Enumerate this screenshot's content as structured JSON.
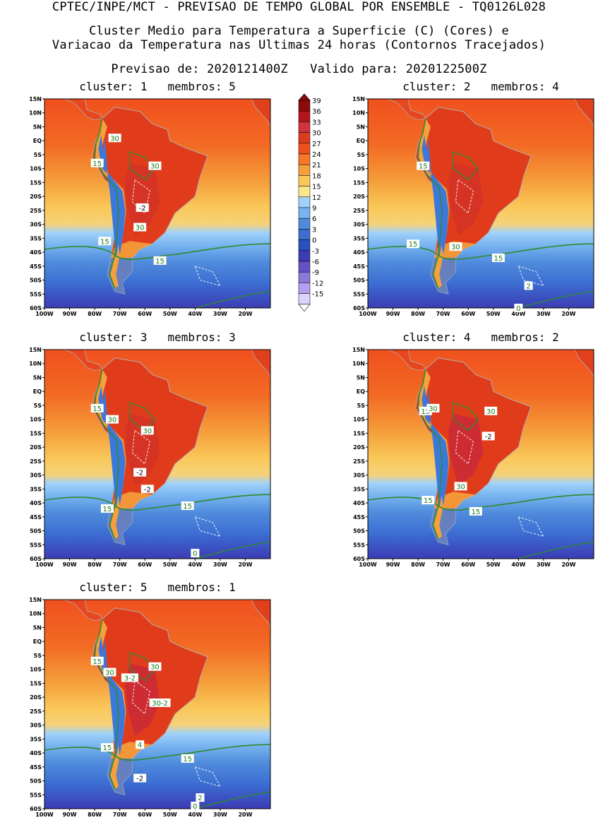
{
  "header": {
    "line1": "CPTEC/INPE/MCT - PREVISAO DE TEMPO GLOBAL POR ENSEMBLE - TQ0126L028",
    "line2": "Cluster Medio para Temperatura a Superficie (C) (Cores) e",
    "line3": "Variacao da Temperatura nas Ultimas 24 horas (Contornos Tracejados)",
    "line4": "Previsao de: 2020121400Z   Valido para: 2020122500Z"
  },
  "lat_labels": [
    "15N",
    "10N",
    "5N",
    "EQ",
    "5S",
    "10S",
    "15S",
    "20S",
    "25S",
    "30S",
    "35S",
    "40S",
    "45S",
    "50S",
    "55S",
    "60S"
  ],
  "lon_labels": [
    "100W",
    "90W",
    "80W",
    "70W",
    "60W",
    "50W",
    "40W",
    "30W",
    "20W"
  ],
  "colorbar": {
    "labels": [
      "39",
      "36",
      "33",
      "30",
      "27",
      "24",
      "21",
      "18",
      "15",
      "12",
      "9",
      "6",
      "3",
      "0",
      "-3",
      "-6",
      "-9",
      "-12",
      "-15"
    ],
    "colors": [
      "#8c0a0a",
      "#b4141e",
      "#d2323c",
      "#dc3c1e",
      "#f0501e",
      "#f57828",
      "#f5a03c",
      "#fac85a",
      "#fae68c",
      "#a0d2fa",
      "#78b4f0",
      "#508cdc",
      "#3c6ed2",
      "#2850be",
      "#3c3cb4",
      "#6450c8",
      "#8c78dc",
      "#b4a0f0",
      "#dcd2fa"
    ]
  },
  "panels": [
    {
      "title": "cluster: 1   membros: 5",
      "labels": [
        {
          "text": "30",
          "lon": -72,
          "lat": 1
        },
        {
          "text": "15",
          "lon": -79,
          "lat": -8
        },
        {
          "text": "30",
          "lon": -56,
          "lat": -9
        },
        {
          "text": "-2",
          "lon": -61,
          "lat": -24
        },
        {
          "text": "30",
          "lon": -62,
          "lat": -31
        },
        {
          "text": "15",
          "lon": -76,
          "lat": -36
        },
        {
          "text": "15",
          "lon": -54,
          "lat": -43
        }
      ]
    },
    {
      "title": "cluster: 2   membros: 4",
      "labels": [
        {
          "text": "15",
          "lon": -78,
          "lat": -9
        },
        {
          "text": "15",
          "lon": -82,
          "lat": -37
        },
        {
          "text": "30",
          "lon": -65,
          "lat": -38
        },
        {
          "text": "15",
          "lon": -48,
          "lat": -42
        },
        {
          "text": "2",
          "lon": -36,
          "lat": -52
        },
        {
          "text": "0",
          "lon": -40,
          "lat": -60
        }
      ]
    },
    {
      "title": "cluster: 3   membros: 3",
      "labels": [
        {
          "text": "15",
          "lon": -79,
          "lat": -6
        },
        {
          "text": "30",
          "lon": -73,
          "lat": -10
        },
        {
          "text": "30",
          "lon": -59,
          "lat": -14
        },
        {
          "text": "-2",
          "lon": -62,
          "lat": -29
        },
        {
          "text": "-2",
          "lon": -59,
          "lat": -35
        },
        {
          "text": "15",
          "lon": -75,
          "lat": -42
        },
        {
          "text": "15",
          "lon": -43,
          "lat": -41
        },
        {
          "text": "0",
          "lon": -40,
          "lat": -58
        }
      ]
    },
    {
      "title": "cluster: 4   membros: 2",
      "labels": [
        {
          "text": "15",
          "lon": -77,
          "lat": -7
        },
        {
          "text": "30",
          "lon": -74,
          "lat": -6
        },
        {
          "text": "30",
          "lon": -51,
          "lat": -7
        },
        {
          "text": "-2",
          "lon": -52,
          "lat": -16
        },
        {
          "text": "30",
          "lon": -63,
          "lat": -34
        },
        {
          "text": "15",
          "lon": -76,
          "lat": -39
        },
        {
          "text": "15",
          "lon": -57,
          "lat": -43
        }
      ]
    },
    {
      "title": "cluster: 5   membros: 1",
      "labels": [
        {
          "text": "15",
          "lon": -79,
          "lat": -7
        },
        {
          "text": "30",
          "lon": -74,
          "lat": -11
        },
        {
          "text": "3-2",
          "lon": -66,
          "lat": -13
        },
        {
          "text": "30",
          "lon": -56,
          "lat": -9
        },
        {
          "text": "30-2",
          "lon": -54,
          "lat": -22
        },
        {
          "text": "4",
          "lon": -62,
          "lat": -37
        },
        {
          "text": "15",
          "lon": -75,
          "lat": -38
        },
        {
          "text": "15",
          "lon": -43,
          "lat": -42
        },
        {
          "text": "-2",
          "lon": -62,
          "lat": -49
        },
        {
          "text": "2",
          "lon": -38,
          "lat": -56
        },
        {
          "text": "0",
          "lon": -40,
          "lat": -59
        }
      ]
    }
  ]
}
